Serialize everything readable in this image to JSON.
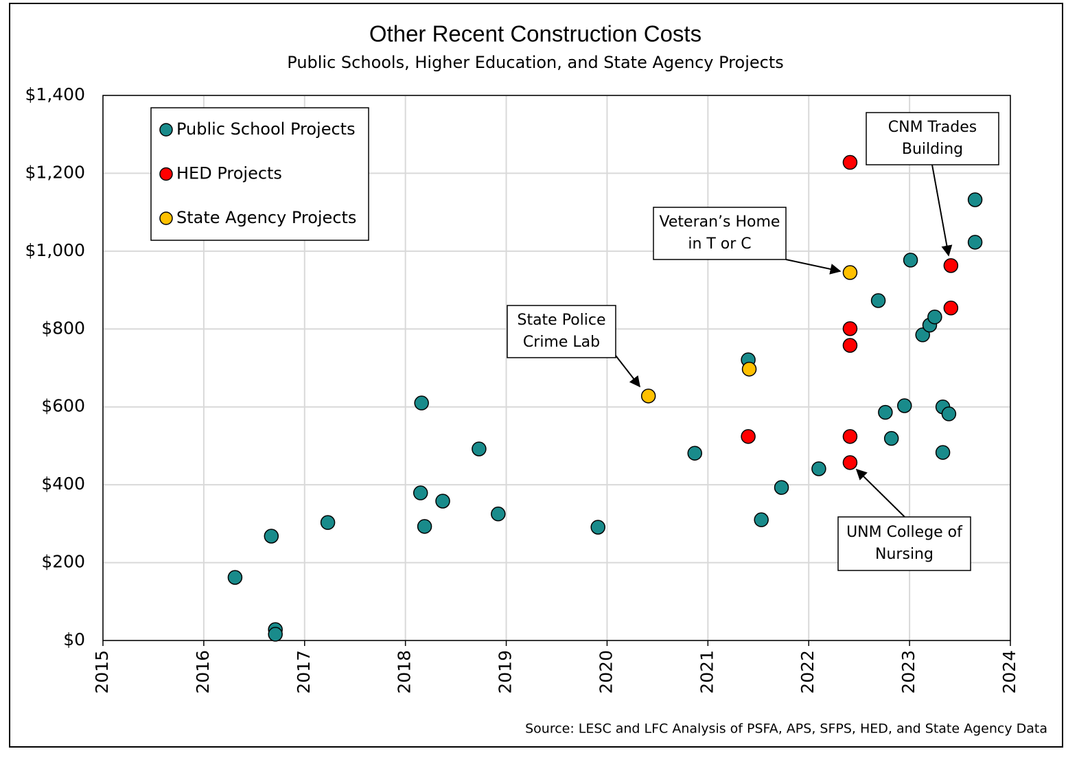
{
  "chart_data": {
    "type": "scatter",
    "title": "Other Recent Construction Costs",
    "subtitle": "Public Schools, Higher Education, and State Agency Projects",
    "source": "Source: LESC and LFC Analysis of PSFA, APS, SFPS, HED, and State Agency Data",
    "xlim": [
      2015,
      2024
    ],
    "xticks": [
      2015,
      2016,
      2017,
      2018,
      2019,
      2020,
      2021,
      2022,
      2023,
      2024
    ],
    "ylim": [
      0,
      1400
    ],
    "yticks": [
      {
        "value": 0,
        "label": "$0"
      },
      {
        "value": 200,
        "label": "$200"
      },
      {
        "value": 400,
        "label": "$400"
      },
      {
        "value": 600,
        "label": "$600"
      },
      {
        "value": 800,
        "label": "$800"
      },
      {
        "value": 1000,
        "label": "$1,000"
      },
      {
        "value": 1200,
        "label": "$1,200"
      },
      {
        "value": 1400,
        "label": "$1,400"
      }
    ],
    "grid": true,
    "legend": "upper left",
    "series": [
      {
        "name": "Public School Projects",
        "color": "#198b8b",
        "x": [
          2016.31,
          2016.67,
          2016.71,
          2016.71,
          2017.23,
          2018.16,
          2018.15,
          2018.19,
          2018.37,
          2018.73,
          2018.92,
          2019.91,
          2020.87,
          2021.4,
          2021.53,
          2021.73,
          2022.1,
          2022.69,
          2022.76,
          2022.82,
          2022.95,
          2023.01,
          2023.13,
          2023.2,
          2023.25,
          2023.33,
          2023.33,
          2023.39,
          2023.65,
          2023.65
        ],
        "values": [
          162,
          268,
          28,
          16,
          303,
          610,
          379,
          293,
          358,
          492,
          325,
          291,
          481,
          721,
          310,
          393,
          441,
          873,
          586,
          519,
          603,
          977,
          785,
          810,
          831,
          600,
          483,
          582,
          1132,
          1023
        ]
      },
      {
        "name": "HED Projects",
        "color": "#ff0000",
        "x": [
          2021.4,
          2022.41,
          2022.41,
          2022.41,
          2022.41,
          2022.41,
          2023.41,
          2023.41
        ],
        "values": [
          524,
          1228,
          801,
          758,
          524,
          457,
          963,
          854
        ]
      },
      {
        "name": "State Agency Projects",
        "color": "#ffc000",
        "x": [
          2020.41,
          2021.41,
          2022.41
        ],
        "values": [
          628,
          697,
          945
        ]
      }
    ],
    "annotations": [
      {
        "lines": [
          "State Police",
          "Crime Lab"
        ]
      },
      {
        "lines": [
          "Veteran’s Home",
          "in T or C"
        ]
      },
      {
        "lines": [
          "CNM Trades",
          "Building"
        ]
      },
      {
        "lines": [
          "UNM College of",
          "Nursing"
        ]
      }
    ]
  }
}
